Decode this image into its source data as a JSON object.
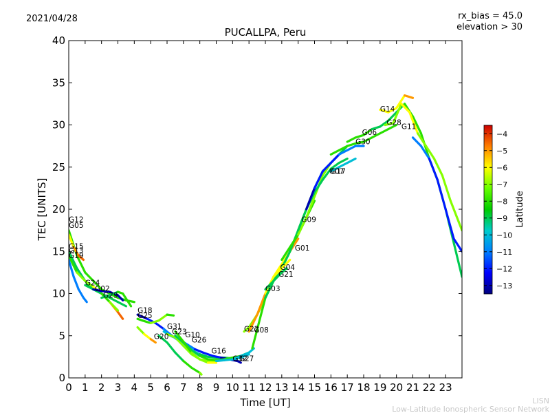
{
  "date": "2021/04/28",
  "rx_bias": "rx_bias = 45.0",
  "elevation": "elevation > 30",
  "credit_short": "LISN",
  "credit_long": "Low-Latitude Ionospheric Sensor Network",
  "chart_data": {
    "type": "line",
    "title": "PUCALLPA, Peru",
    "xlabel": "Time [UT]",
    "ylabel": "TEC [UNITS]",
    "xlim": [
      0,
      24
    ],
    "ylim": [
      0,
      40
    ],
    "xticks": [
      0,
      1,
      2,
      3,
      4,
      5,
      6,
      7,
      8,
      9,
      10,
      11,
      12,
      13,
      14,
      15,
      16,
      17,
      18,
      19,
      20,
      21,
      22,
      23
    ],
    "yticks": [
      0,
      5,
      10,
      15,
      20,
      25,
      30,
      35,
      40
    ],
    "colorbar": {
      "label": "Latitude",
      "range": [
        -13.5,
        -3.5
      ],
      "ticks": [
        -4,
        -5,
        -6,
        -7,
        -8,
        -9,
        -10,
        -11,
        -12,
        -13
      ]
    },
    "series": [
      {
        "name": "G12",
        "label_at": [
          0.0,
          18.5
        ],
        "x": [
          0,
          0.5,
          1,
          1.5,
          2,
          2.5,
          3,
          3.5,
          4
        ],
        "y": [
          17.5,
          14.5,
          12.5,
          11.5,
          10.5,
          10.0,
          9.5,
          9.2,
          9.0
        ],
        "lat": [
          -8,
          -8,
          -8,
          -8,
          -8,
          -8,
          -8,
          -8,
          -8
        ]
      },
      {
        "name": "G05",
        "label_at": [
          0.0,
          17.8
        ],
        "x": [
          0,
          0.3,
          0.6,
          0.9
        ],
        "y": [
          17.0,
          15.5,
          14.5,
          14.0
        ],
        "lat": [
          -6,
          -5,
          -4.5,
          -4
        ]
      },
      {
        "name": "G15",
        "label_at": [
          0.0,
          15.3
        ],
        "x": [
          0,
          0.5,
          1,
          1.5,
          2,
          2.5,
          3,
          3.5
        ],
        "y": [
          15.0,
          13.0,
          11.5,
          10.5,
          10.0,
          9.5,
          9.0,
          8.5
        ],
        "lat": [
          -9,
          -9,
          -9,
          -9,
          -9,
          -9,
          -9,
          -9
        ]
      },
      {
        "name": "G13",
        "label_at": [
          0.0,
          14.8
        ],
        "x": [
          0,
          0.5,
          1,
          1.5,
          2,
          2.5,
          3,
          3.3
        ],
        "y": [
          14.5,
          12.5,
          11.5,
          10.8,
          10.0,
          9.0,
          7.8,
          7.0
        ],
        "lat": [
          -8,
          -7,
          -7,
          -6,
          -6,
          -5,
          -4.5,
          -4
        ]
      },
      {
        "name": "G19",
        "label_at": [
          0.0,
          14.2
        ],
        "x": [
          0,
          0.3,
          0.6,
          0.9,
          1.1
        ],
        "y": [
          14.0,
          12.0,
          10.5,
          9.5,
          9.0
        ],
        "lat": [
          -11,
          -11,
          -11,
          -11,
          -11
        ]
      },
      {
        "name": "G24",
        "label_at": [
          1.0,
          11.0
        ],
        "x": [
          1,
          1.5,
          2,
          2.5,
          3
        ],
        "y": [
          11.0,
          10.5,
          10.0,
          9.0,
          8.0
        ],
        "lat": [
          -9,
          -9,
          -8,
          -7,
          -6
        ]
      },
      {
        "name": "G02",
        "label_at": [
          1.6,
          10.3
        ],
        "x": [
          1.5,
          2,
          2.5,
          3,
          3.3
        ],
        "y": [
          10.5,
          10.3,
          10.2,
          9.8,
          9.2
        ],
        "lat": [
          -13,
          -13,
          -13,
          -13,
          -13
        ]
      },
      {
        "name": "G29",
        "label_at": [
          2.1,
          9.5
        ],
        "x": [
          2,
          2.5,
          3,
          3.3,
          3.8
        ],
        "y": [
          9.5,
          9.8,
          10.2,
          10.0,
          8.5
        ],
        "lat": [
          -9,
          -9,
          -8,
          -8,
          -7
        ]
      },
      {
        "name": "G18",
        "label_at": [
          4.2,
          7.7
        ],
        "x": [
          4.2,
          4.8,
          5.3,
          5.8,
          6.3,
          6.8,
          7.5,
          8,
          8.5,
          9,
          9.5,
          10
        ],
        "y": [
          7.5,
          7.0,
          6.5,
          5.8,
          5.0,
          4.3,
          3.3,
          2.8,
          2.5,
          2.4,
          2.4,
          2.3
        ],
        "lat": [
          -13,
          -12,
          -12,
          -11,
          -11,
          -10,
          -10,
          -9,
          -9,
          -9,
          -9,
          -9
        ]
      },
      {
        "name": "G25",
        "label_at": [
          4.2,
          7.1
        ],
        "x": [
          4.2,
          4.5,
          5,
          5.5,
          6,
          6.4
        ],
        "y": [
          7.0,
          6.8,
          6.5,
          6.8,
          7.5,
          7.4
        ],
        "lat": [
          -8,
          -8,
          -7,
          -7,
          -8,
          -8
        ]
      },
      {
        "name": "G20",
        "label_at": [
          5.2,
          4.6
        ],
        "x": [
          4.2,
          4.6,
          5,
          5.3
        ],
        "y": [
          6.0,
          5.2,
          4.6,
          4.2
        ],
        "lat": [
          -7,
          -6,
          -5,
          -4
        ]
      },
      {
        "name": "G31",
        "label_at": [
          6.0,
          5.8
        ],
        "x": [
          5.8,
          6.2,
          6.7,
          7.2,
          7.7,
          8.2,
          8.8,
          9.3,
          9.8,
          10.3,
          10.5
        ],
        "y": [
          5.5,
          5.0,
          4.6,
          4.0,
          3.4,
          3.0,
          2.6,
          2.4,
          2.2,
          2.0,
          1.8
        ],
        "lat": [
          -10,
          -10,
          -11,
          -11,
          -12,
          -12,
          -12,
          -13,
          -13,
          -13,
          -13
        ]
      },
      {
        "name": "G23",
        "label_at": [
          6.3,
          5.2
        ],
        "x": [
          6,
          6.5,
          7,
          7.5,
          8,
          8.5,
          9,
          9.5,
          10,
          10.5,
          11
        ],
        "y": [
          5.2,
          4.8,
          3.8,
          2.8,
          2.2,
          2.0,
          2.0,
          2.2,
          2.4,
          2.6,
          3.0
        ],
        "lat": [
          -7,
          -7,
          -7,
          -7,
          -7,
          -7,
          -7,
          -7,
          -7,
          -7,
          -7
        ]
      },
      {
        "name": "G10",
        "label_at": [
          7.1,
          4.8
        ],
        "x": [
          6.5,
          7,
          7.5,
          8,
          8.5,
          9,
          9.5,
          10,
          10.5,
          11
        ],
        "y": [
          5.0,
          4.2,
          3.3,
          2.6,
          2.2,
          2.1,
          2.2,
          2.4,
          2.6,
          3.0
        ],
        "lat": [
          -9,
          -9,
          -9,
          -8,
          -8,
          -8,
          -8,
          -8,
          -8,
          -8
        ]
      },
      {
        "name": "G26",
        "label_at": [
          7.5,
          4.2
        ],
        "x": [
          5.5,
          6,
          6.5,
          7,
          7.5,
          8,
          8.1
        ],
        "y": [
          5.0,
          4.2,
          3.0,
          2.0,
          1.2,
          0.6,
          0.4
        ],
        "lat": [
          -9,
          -9,
          -9,
          -8,
          -8,
          -7,
          -6
        ]
      },
      {
        "name": "G16",
        "label_at": [
          8.7,
          2.9
        ],
        "x": [
          6.5,
          7,
          7.5,
          8,
          8.5,
          9
        ],
        "y": [
          5.5,
          4.3,
          3.0,
          2.2,
          1.8,
          1.8
        ],
        "lat": [
          -8,
          -8,
          -7,
          -7,
          -6,
          -5
        ]
      },
      {
        "name": "G32",
        "label_at": [
          10.0,
          2.0
        ],
        "x": [
          9,
          9.5,
          10,
          10.5,
          11
        ],
        "y": [
          2.0,
          2.1,
          2.2,
          2.4,
          2.8
        ],
        "lat": [
          -10,
          -10,
          -10,
          -10,
          -11
        ]
      },
      {
        "name": "G27",
        "label_at": [
          10.4,
          2.0
        ],
        "x": [
          10,
          10.5,
          11,
          11.3
        ],
        "y": [
          2.2,
          2.6,
          3.0,
          3.5
        ],
        "lat": [
          -10,
          -10,
          -10,
          -10
        ]
      },
      {
        "name": "G22",
        "label_at": [
          10.7,
          5.5
        ],
        "x": [
          10.7,
          11,
          11.5,
          12,
          12.5,
          13,
          13.5,
          14,
          14.5,
          15
        ],
        "y": [
          5.5,
          6.0,
          7.5,
          9.5,
          11.5,
          13.0,
          15.0,
          17.0,
          19.0,
          21.0
        ],
        "lat": [
          -7,
          -7,
          -7,
          -7,
          -7,
          -8,
          -8,
          -8,
          -8,
          -8
        ]
      },
      {
        "name": "G08",
        "label_at": [
          11.3,
          5.4
        ],
        "x": [
          11,
          11.5,
          12,
          12.5,
          13,
          13.5,
          14
        ],
        "y": [
          5.5,
          7.5,
          10.0,
          12.0,
          13.5,
          15.0,
          16.5
        ],
        "lat": [
          -5,
          -5,
          -6,
          -6,
          -6,
          -5,
          -4
        ]
      },
      {
        "name": "G03",
        "label_at": [
          12.0,
          10.3
        ],
        "x": [
          11.2,
          11.6,
          12,
          12.5,
          13,
          13.5,
          14,
          14.5,
          15,
          15.5,
          16,
          16.5,
          17
        ],
        "y": [
          3.5,
          6.5,
          9.5,
          11.5,
          13.0,
          15.0,
          17.5,
          20.0,
          22.5,
          24.5,
          25.5,
          26.5,
          27.5
        ],
        "lat": [
          -8,
          -8,
          -9,
          -9,
          -9,
          -9,
          -9,
          -9,
          -9,
          -9,
          -9,
          -9,
          -9
        ]
      },
      {
        "name": "G21",
        "label_at": [
          12.8,
          12.0
        ],
        "x": [
          12,
          12.5,
          13,
          13.3
        ],
        "y": [
          10.5,
          11.5,
          12.5,
          13.0
        ],
        "lat": [
          -9,
          -9,
          -9,
          -9
        ]
      },
      {
        "name": "G04",
        "label_at": [
          12.9,
          12.8
        ],
        "x": [
          12.5,
          13,
          13.5
        ],
        "y": [
          12.0,
          13.0,
          14.0
        ],
        "lat": [
          -6,
          -6,
          -6
        ]
      },
      {
        "name": "G01",
        "label_at": [
          13.8,
          15.1
        ],
        "x": [
          13,
          13.5,
          14,
          14.5,
          15,
          15.5,
          16
        ],
        "y": [
          14.0,
          15.5,
          17.0,
          19.0,
          21.5,
          24.0,
          25.5
        ],
        "lat": [
          -8,
          -8,
          -7,
          -7,
          -7,
          -7,
          -7
        ]
      },
      {
        "name": "G09",
        "label_at": [
          14.2,
          18.5
        ],
        "x": [
          14,
          14.5,
          15,
          15.5,
          16,
          16.5,
          17
        ],
        "y": [
          17.5,
          20.0,
          22.0,
          23.5,
          24.8,
          25.5,
          26.0
        ],
        "lat": [
          -9,
          -9,
          -9,
          -9,
          -9,
          -9,
          -9
        ]
      },
      {
        "name": "G07",
        "label_at": [
          15.9,
          24.2
        ],
        "x": [
          14.5,
          15,
          15.5,
          16,
          16.5,
          17,
          17.5,
          18
        ],
        "y": [
          20.0,
          22.5,
          24.5,
          25.5,
          26.5,
          27.0,
          27.5,
          27.5
        ],
        "lat": [
          -13,
          -12,
          -12,
          -12,
          -11,
          -11,
          -11,
          -10
        ]
      },
      {
        "name": "G17",
        "label_at": [
          16.0,
          24.2
        ],
        "x": [
          16,
          16.5,
          17,
          17.5
        ],
        "y": [
          24.5,
          25.0,
          25.5,
          26.0
        ],
        "lat": [
          -10,
          -10,
          -10,
          -10
        ]
      },
      {
        "name": "G30",
        "label_at": [
          17.5,
          27.7
        ],
        "x": [
          16,
          16.5,
          17,
          17.5,
          18,
          18.5,
          19,
          19.5,
          20
        ],
        "y": [
          26.5,
          27.0,
          27.5,
          27.8,
          28.0,
          28.5,
          29.0,
          29.5,
          30.0
        ],
        "lat": [
          -8,
          -8,
          -8,
          -8,
          -8,
          -8,
          -8,
          -8,
          -8
        ]
      },
      {
        "name": "G06",
        "label_at": [
          17.9,
          28.8
        ],
        "x": [
          17,
          17.5,
          18,
          18.5,
          19,
          19.5,
          20,
          20.5,
          21,
          21.5,
          22,
          22.5,
          23,
          23.5,
          24
        ],
        "y": [
          28.0,
          28.5,
          28.8,
          29.5,
          29.8,
          30.5,
          31.5,
          32.5,
          31.0,
          29.0,
          26.0,
          23.5,
          20.0,
          16.0,
          12.0
        ],
        "lat": [
          -8,
          -8,
          -8,
          -9,
          -9,
          -9,
          -9,
          -8,
          -8,
          -8,
          -8,
          -8,
          -9,
          -9,
          -9
        ]
      },
      {
        "name": "G14",
        "label_at": [
          19.0,
          31.6
        ],
        "x": [
          19,
          19.5,
          20,
          20.5,
          21
        ],
        "y": [
          31.8,
          31.5,
          32.0,
          33.5,
          33.2
        ],
        "lat": [
          -6,
          -6,
          -6,
          -5,
          -4
        ]
      },
      {
        "name": "G28",
        "label_at": [
          19.4,
          30.0
        ],
        "x": [
          19.3,
          19.8,
          20.3,
          20.8,
          21.3,
          21.8,
          22.3,
          22.8,
          23.3,
          23.8,
          24
        ],
        "y": [
          30.0,
          30.2,
          32.5,
          31.5,
          29.0,
          27.5,
          26.0,
          24.0,
          21.0,
          18.5,
          17.5
        ],
        "lat": [
          -7,
          -7,
          -6,
          -6,
          -7,
          -7,
          -7,
          -7,
          -7,
          -7,
          -7
        ]
      },
      {
        "name": "G11",
        "label_at": [
          20.3,
          29.5
        ],
        "x": [
          21,
          21.5,
          22,
          22.5,
          23,
          23.5,
          24
        ],
        "y": [
          28.5,
          27.5,
          26.0,
          23.5,
          20.0,
          16.5,
          15.0
        ],
        "lat": [
          -11,
          -11,
          -12,
          -12,
          -12,
          -12,
          -12
        ]
      }
    ]
  }
}
